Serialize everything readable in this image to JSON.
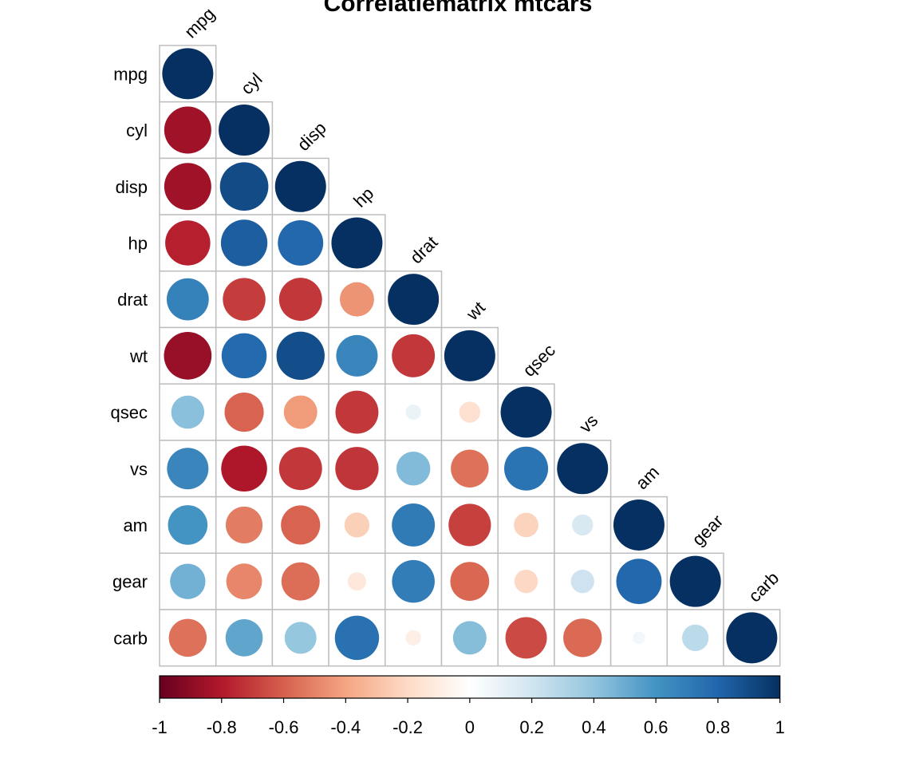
{
  "chart_data": {
    "type": "heatmap",
    "variant": "correlation-matrix-lower-triangle-circles",
    "title": "Correlatiematrix mtcars",
    "variables": [
      "mpg",
      "cyl",
      "disp",
      "hp",
      "drat",
      "wt",
      "qsec",
      "vs",
      "am",
      "gear",
      "carb"
    ],
    "matrix": [
      [
        1.0,
        -0.85,
        -0.85,
        -0.78,
        0.68,
        -0.87,
        0.42,
        0.66,
        0.6,
        0.48,
        -0.55
      ],
      [
        -0.85,
        1.0,
        0.9,
        0.83,
        -0.7,
        0.78,
        -0.59,
        -0.81,
        -0.52,
        -0.49,
        0.53
      ],
      [
        -0.85,
        0.9,
        1.0,
        0.79,
        -0.71,
        0.89,
        -0.43,
        -0.71,
        -0.59,
        -0.56,
        0.39
      ],
      [
        -0.78,
        0.83,
        0.79,
        1.0,
        -0.45,
        0.66,
        -0.71,
        -0.72,
        -0.24,
        -0.13,
        0.75
      ],
      [
        0.68,
        -0.7,
        -0.71,
        -0.45,
        1.0,
        -0.71,
        0.09,
        0.44,
        0.71,
        0.7,
        -0.09
      ],
      [
        -0.87,
        0.78,
        0.89,
        0.66,
        -0.71,
        1.0,
        -0.17,
        -0.55,
        -0.69,
        -0.58,
        0.43
      ],
      [
        0.42,
        -0.59,
        -0.43,
        -0.71,
        0.09,
        -0.17,
        1.0,
        0.74,
        -0.23,
        -0.21,
        -0.66
      ],
      [
        0.66,
        -0.81,
        -0.71,
        -0.72,
        0.44,
        -0.55,
        0.74,
        1.0,
        0.17,
        0.21,
        -0.57
      ],
      [
        0.6,
        -0.52,
        -0.59,
        -0.24,
        0.71,
        -0.69,
        -0.23,
        0.17,
        1.0,
        0.79,
        0.06
      ],
      [
        0.48,
        -0.49,
        -0.56,
        -0.13,
        0.7,
        -0.58,
        -0.21,
        0.21,
        0.79,
        1.0,
        0.27
      ],
      [
        -0.55,
        0.53,
        0.39,
        0.75,
        -0.09,
        0.43,
        -0.66,
        -0.57,
        0.06,
        0.27,
        1.0
      ]
    ],
    "colorbar": {
      "range": [
        -1,
        1
      ],
      "ticks": [
        "-1",
        "-0.8",
        "-0.6",
        "-0.4",
        "-0.2",
        "0",
        "0.2",
        "0.4",
        "0.6",
        "0.8",
        "1"
      ],
      "colors": [
        "#67001F",
        "#B2182B",
        "#D6604D",
        "#F4A582",
        "#FDDBC7",
        "#FFFFFF",
        "#D1E5F0",
        "#92C5DE",
        "#4393C3",
        "#2166AC",
        "#053061"
      ]
    },
    "grid": true,
    "legend_placement": "bottom"
  }
}
